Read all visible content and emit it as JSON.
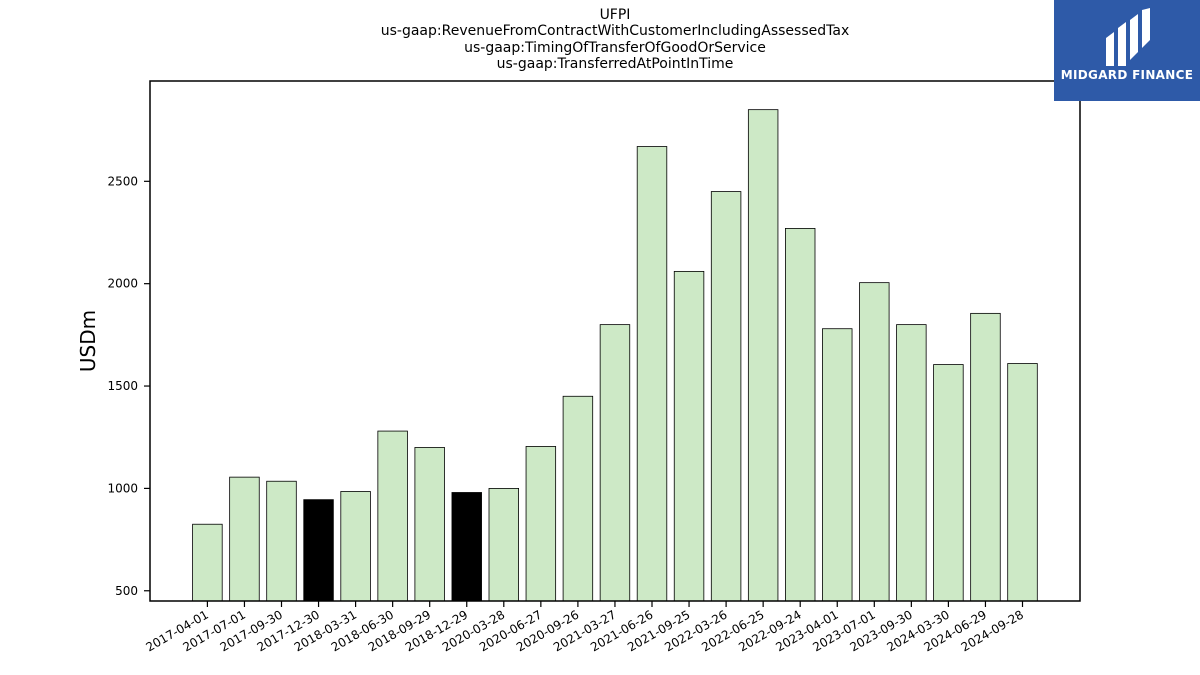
{
  "title_lines": [
    "UFPI",
    "us-gaap:RevenueFromContractWithCustomerIncludingAssessedTax",
    "us-gaap:TimingOfTransferOfGoodOrService",
    "us-gaap:TransferredAtPointInTime"
  ],
  "logo": {
    "text": "MIDGARD FINANCE",
    "bg": "#2e5aa8",
    "icon": "midgard-logo-icon"
  },
  "chart_data": {
    "type": "bar",
    "ylabel": "USDm",
    "xlabel": "",
    "ylim": [
      450,
      2990
    ],
    "yticks": [
      500,
      1000,
      1500,
      2000,
      2500
    ],
    "grid": false,
    "bar_color": "#cde9c6",
    "highlight_color": "#000000",
    "categories": [
      "2017-04-01",
      "2017-07-01",
      "2017-09-30",
      "2017-12-30",
      "2018-03-31",
      "2018-06-30",
      "2018-09-29",
      "2018-12-29",
      "2020-03-28",
      "2020-06-27",
      "2020-09-26",
      "2021-03-27",
      "2021-06-26",
      "2021-09-25",
      "2022-03-26",
      "2022-06-25",
      "2022-09-24",
      "2023-04-01",
      "2023-07-01",
      "2023-09-30",
      "2024-03-30",
      "2024-06-29",
      "2024-09-28"
    ],
    "values": [
      825,
      1055,
      1035,
      945,
      985,
      1280,
      1200,
      980,
      1000,
      1205,
      1450,
      1800,
      2670,
      2060,
      2450,
      2850,
      2270,
      1780,
      2005,
      1800,
      1605,
      1855,
      1610
    ],
    "highlighted": [
      false,
      false,
      false,
      true,
      false,
      false,
      false,
      true,
      false,
      false,
      false,
      false,
      false,
      false,
      false,
      false,
      false,
      false,
      false,
      false,
      false,
      false,
      false
    ]
  }
}
